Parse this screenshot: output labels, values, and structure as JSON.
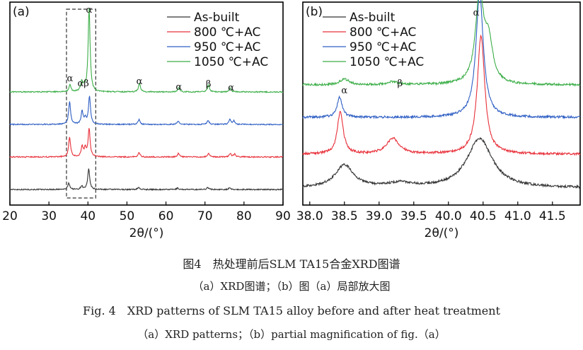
{
  "chart_data": [
    {
      "type": "line",
      "panel_label": "(a)",
      "xlabel": "2θ/(°)",
      "ylabel": "",
      "xlim": [
        20,
        90
      ],
      "xticks": [
        20,
        30,
        40,
        50,
        60,
        70,
        80,
        90
      ],
      "legend_position": "top-right",
      "series": [
        {
          "name": "As-built",
          "color": "#333333",
          "offset": 0,
          "peaks": [
            [
              35.1,
              9
            ],
            [
              38.4,
              5
            ],
            [
              40.2,
              29
            ],
            [
              53.0,
              3
            ],
            [
              63.0,
              2
            ],
            [
              70.7,
              3
            ],
            [
              76.3,
              2
            ]
          ]
        },
        {
          "name": "800 ℃+AC",
          "color": "#e8303a",
          "offset": 46,
          "peaks": [
            [
              35.3,
              28
            ],
            [
              38.5,
              14
            ],
            [
              39.3,
              12
            ],
            [
              40.3,
              40
            ],
            [
              53.1,
              6
            ],
            [
              63.2,
              5
            ],
            [
              70.9,
              5
            ],
            [
              76.5,
              5
            ],
            [
              77.6,
              4
            ]
          ]
        },
        {
          "name": "950 ℃+AC",
          "color": "#2f5fc4",
          "offset": 92,
          "peaks": [
            [
              35.3,
              32
            ],
            [
              38.5,
              18
            ],
            [
              39.3,
              8
            ],
            [
              40.4,
              40
            ],
            [
              53.1,
              7
            ],
            [
              63.1,
              5
            ],
            [
              70.8,
              6
            ],
            [
              76.4,
              7
            ],
            [
              77.4,
              5
            ]
          ]
        },
        {
          "name": "1050 ℃+AC",
          "color": "#3cae48",
          "offset": 138,
          "peaks": [
            [
              35.4,
              10
            ],
            [
              38.4,
              14
            ],
            [
              39.1,
              6
            ],
            [
              40.3,
              118
            ],
            [
              53.2,
              12
            ],
            [
              63.3,
              6
            ],
            [
              70.9,
              10
            ],
            [
              76.5,
              5
            ]
          ]
        }
      ],
      "annotations": [
        {
          "text": "α",
          "x": 40.3
        },
        {
          "text": "α",
          "x": 35.4
        },
        {
          "text": "αβ",
          "x": 38.8
        },
        {
          "text": "α",
          "x": 53.2
        },
        {
          "text": "α",
          "x": 63.3
        },
        {
          "text": "β",
          "x": 70.9
        },
        {
          "text": "α",
          "x": 76.7
        }
      ],
      "highlight_box_x": [
        34.5,
        42.0
      ]
    },
    {
      "type": "line",
      "panel_label": "(b)",
      "xlabel": "2θ/(°)",
      "ylabel": "",
      "xlim": [
        37.9,
        41.9
      ],
      "xticks": [
        38.0,
        38.5,
        39.0,
        39.5,
        40.0,
        40.5,
        41.0,
        41.5
      ],
      "xtick_labels": [
        "38.0",
        "38.5",
        "39.0",
        "39.5",
        "40.0",
        "40.5",
        "41.0",
        "41.5"
      ],
      "legend_position": "top-left",
      "series": [
        {
          "name": "As-built",
          "color": "#333333",
          "offset": 0,
          "peaks": [
            [
              38.5,
              32,
              0.16
            ],
            [
              39.3,
              6,
              0.2
            ],
            [
              40.45,
              70,
              0.22
            ]
          ]
        },
        {
          "name": "800 ℃+AC",
          "color": "#e8303a",
          "offset": 48,
          "peaks": [
            [
              38.44,
              60,
              0.05
            ],
            [
              39.2,
              22,
              0.11
            ],
            [
              40.47,
              168,
              0.065
            ]
          ]
        },
        {
          "name": "950 ℃+AC",
          "color": "#2f5fc4",
          "offset": 100,
          "peaks": [
            [
              38.43,
              28,
              0.045
            ],
            [
              40.45,
              175,
              0.065
            ]
          ]
        },
        {
          "name": "1050 ℃+AC",
          "color": "#3cae48",
          "offset": 146,
          "peaks": [
            [
              38.5,
              8,
              0.08
            ],
            [
              39.2,
              4,
              0.1
            ],
            [
              40.45,
              125,
              0.07
            ],
            [
              40.58,
              55,
              0.07
            ]
          ]
        }
      ],
      "annotations": [
        {
          "text": "α",
          "x": 38.5
        },
        {
          "text": "β",
          "x": 39.3
        },
        {
          "text": "α",
          "x": 40.4
        }
      ]
    }
  ],
  "caption": {
    "cn_title": "图4　热处理前后SLM TA15合金XRD图谱",
    "cn_sub": "（a）XRD图谱；（b）图（a）局部放大图",
    "en_title": "Fig. 4　XRD patterns of SLM TA15 alloy before and after heat treatment",
    "en_sub": "（a）XRD patterns；（b）partial magnification of fig.（a）"
  }
}
